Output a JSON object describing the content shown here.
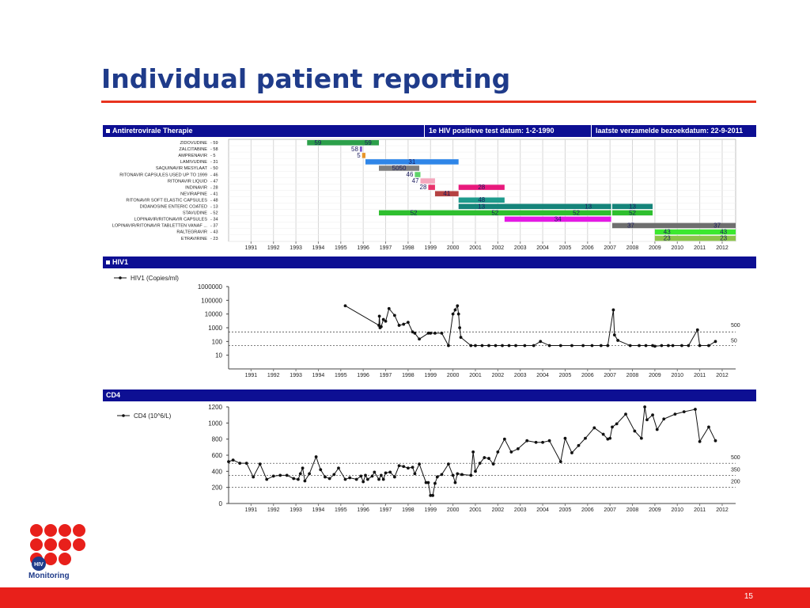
{
  "slide": {
    "title": "Individual patient reporting",
    "page_number": "15",
    "logo_text": "Monitoring",
    "logo_badge": "HIV"
  },
  "sections": {
    "therapy_header": "Antiretrovirale Therapie",
    "test_date": "1e HIV positieve test datum: 1-2-1990",
    "visit_date": "laatste verzamelde bezoekdatum: 22-9-2011",
    "hiv_header": "HIV1",
    "cd4_header": "CD4"
  },
  "colors": {
    "header_bg": "#0d0f93",
    "title": "#1f3b8a",
    "accent_red": "#e8201b"
  },
  "chart_data": [
    {
      "type": "bar",
      "subtype": "gantt",
      "x_ticks": [
        "1991",
        "1992",
        "1993",
        "1994",
        "1995",
        "1996",
        "1997",
        "1998",
        "1999",
        "2000",
        "2001",
        "2002",
        "2003",
        "2004",
        "2005",
        "2006",
        "2007",
        "2008",
        "2009",
        "2010",
        "2011",
        "2012"
      ],
      "xlim": [
        1990,
        2012.6
      ],
      "drugs": [
        {
          "label": "ZIDOVUDINE",
          "code": "- 59"
        },
        {
          "label": "ZALCITABINE",
          "code": "- 58"
        },
        {
          "label": "AMPRENAVIR",
          "code": "- 5"
        },
        {
          "label": "LAMIVUDINE",
          "code": "- 31"
        },
        {
          "label": "SAQUINAVIR MESYLAAT",
          "code": "- 50"
        },
        {
          "label": "RITONAVIR CAPSULES USED UP TO 1999",
          "code": "- 46"
        },
        {
          "label": "RITONAVIR LIQUID",
          "code": "- 47"
        },
        {
          "label": "INDINAVIR",
          "code": "- 28"
        },
        {
          "label": "NEVIRAPINE",
          "code": "- 41"
        },
        {
          "label": "RITONAVIR SOFT ELASTIC CAPSULES",
          "code": "- 48"
        },
        {
          "label": "DIDANOSINE ENTERIC COATED",
          "code": "- 13"
        },
        {
          "label": "STAVUDINE",
          "code": "- 52"
        },
        {
          "label": "LOPINAVIR/RITONAVIR CAPSULES",
          "code": "- 34"
        },
        {
          "label": "LOPINAVIR/RITONAVIR TABLETTEN VANAF ...",
          "code": "- 37"
        },
        {
          "label": "RALTEGRAVIR",
          "code": "- 43"
        },
        {
          "label": "ETRAVIRINE",
          "code": "- 23"
        }
      ],
      "bars": [
        {
          "row": 0,
          "start": 1993.5,
          "end": 1996.7,
          "color": "#2ca04a",
          "labels": [
            "59",
            "59"
          ]
        },
        {
          "row": 1,
          "start": 1995.85,
          "end": 1995.95,
          "color": "#7b5ccf",
          "labels": [
            "58"
          ]
        },
        {
          "row": 2,
          "start": 1995.95,
          "end": 1996.1,
          "color": "#e8952a",
          "labels": [
            "5"
          ]
        },
        {
          "row": 3,
          "start": 1996.1,
          "end": 2000.25,
          "color": "#2f86e8",
          "labels": [
            "31"
          ]
        },
        {
          "row": 4,
          "start": 1996.7,
          "end": 1998.5,
          "color": "#7f7f7f",
          "labels": [
            "5050"
          ]
        },
        {
          "row": 5,
          "start": 1998.3,
          "end": 1998.55,
          "color": "#5fd36a",
          "labels": [
            "46"
          ]
        },
        {
          "row": 6,
          "start": 1998.55,
          "end": 1999.2,
          "color": "#f5a6bd",
          "labels": [
            "47"
          ]
        },
        {
          "row": 7,
          "start": 1998.9,
          "end": 1999.2,
          "color": "#e8326b",
          "labels": [
            "28"
          ]
        },
        {
          "row": 7,
          "start": 2000.25,
          "end": 2002.3,
          "color": "#e8197c",
          "labels": [
            "28"
          ]
        },
        {
          "row": 8,
          "start": 1999.2,
          "end": 2000.25,
          "color": "#b54242",
          "labels": [
            "41"
          ]
        },
        {
          "row": 9,
          "start": 2000.25,
          "end": 2002.3,
          "color": "#1e9b8c",
          "labels": [
            "48"
          ]
        },
        {
          "row": 10,
          "start": 2000.25,
          "end": 2007.05,
          "color": "#15847a",
          "labels": [
            "13",
            "13"
          ]
        },
        {
          "row": 10,
          "start": 2007.1,
          "end": 2008.9,
          "color": "#15847a",
          "labels": [
            "13"
          ]
        },
        {
          "row": 11,
          "start": 1996.7,
          "end": 2007.05,
          "color": "#2ebf2e",
          "labels": [
            "52",
            "52",
            "52"
          ]
        },
        {
          "row": 11,
          "start": 2007.1,
          "end": 2008.9,
          "color": "#2ebf2e",
          "labels": [
            "52"
          ]
        },
        {
          "row": 12,
          "start": 2002.3,
          "end": 2007.05,
          "color": "#e51ae5",
          "labels": [
            "34"
          ]
        },
        {
          "row": 13,
          "start": 2007.1,
          "end": 2012.6,
          "color": "#6e6e6e",
          "labels": [
            "37",
            "37"
          ]
        },
        {
          "row": 14,
          "start": 2009,
          "end": 2012.6,
          "color": "#3be82f",
          "labels": [
            "43",
            "43"
          ]
        },
        {
          "row": 15,
          "start": 2009,
          "end": 2012.6,
          "color": "#8bc34a",
          "labels": [
            "23",
            "23"
          ]
        }
      ]
    },
    {
      "type": "line",
      "scale": "log",
      "legend": "HIV1 (Copies/ml)",
      "y_ticks": [
        "10",
        "100",
        "1000",
        "10000",
        "100000",
        "1000000"
      ],
      "ylim": [
        1,
        1000000
      ],
      "xlim": [
        1990,
        2012.6
      ],
      "x_ticks": [
        "1991",
        "1992",
        "1993",
        "1994",
        "1995",
        "1996",
        "1997",
        "1998",
        "1999",
        "2000",
        "2001",
        "2002",
        "2003",
        "2004",
        "2005",
        "2006",
        "2007",
        "2008",
        "2009",
        "2010",
        "2011",
        "2012"
      ],
      "reference_lines": [
        {
          "value": 500,
          "label": "500"
        },
        {
          "value": 50,
          "label": "50"
        }
      ],
      "points": [
        [
          1995.2,
          40000
        ],
        [
          1996.7,
          1500
        ],
        [
          1996.72,
          7000
        ],
        [
          1996.75,
          1000
        ],
        [
          1996.8,
          1200
        ],
        [
          1996.9,
          4000
        ],
        [
          1997.0,
          3000
        ],
        [
          1997.15,
          25000
        ],
        [
          1997.4,
          8000
        ],
        [
          1997.6,
          1500
        ],
        [
          1997.8,
          1800
        ],
        [
          1998.0,
          2500
        ],
        [
          1998.2,
          500
        ],
        [
          1998.3,
          400
        ],
        [
          1998.5,
          150
        ],
        [
          1998.9,
          400
        ],
        [
          1999.0,
          400
        ],
        [
          1999.2,
          400
        ],
        [
          1999.5,
          400
        ],
        [
          1999.8,
          50
        ],
        [
          2000.0,
          10000
        ],
        [
          2000.1,
          20000
        ],
        [
          2000.2,
          40000
        ],
        [
          2000.25,
          10000
        ],
        [
          2000.3,
          1000
        ],
        [
          2000.35,
          200
        ],
        [
          2000.8,
          50
        ],
        [
          2001.0,
          50
        ],
        [
          2001.3,
          50
        ],
        [
          2001.6,
          50
        ],
        [
          2001.9,
          50
        ],
        [
          2002.2,
          50
        ],
        [
          2002.5,
          50
        ],
        [
          2002.8,
          50
        ],
        [
          2003.2,
          50
        ],
        [
          2003.6,
          50
        ],
        [
          2003.9,
          100
        ],
        [
          2004.3,
          50
        ],
        [
          2004.8,
          50
        ],
        [
          2005.3,
          50
        ],
        [
          2005.8,
          50
        ],
        [
          2006.2,
          50
        ],
        [
          2006.6,
          50
        ],
        [
          2006.9,
          50
        ],
        [
          2007.15,
          20000
        ],
        [
          2007.2,
          300
        ],
        [
          2007.35,
          120
        ],
        [
          2007.9,
          50
        ],
        [
          2008.3,
          50
        ],
        [
          2008.6,
          50
        ],
        [
          2008.9,
          50
        ],
        [
          2009.0,
          45
        ],
        [
          2009.3,
          50
        ],
        [
          2009.6,
          50
        ],
        [
          2009.8,
          50
        ],
        [
          2010.2,
          50
        ],
        [
          2010.5,
          50
        ],
        [
          2010.9,
          700
        ],
        [
          2011.0,
          50
        ],
        [
          2011.4,
          50
        ],
        [
          2011.7,
          100
        ]
      ]
    },
    {
      "type": "line",
      "legend": "CD4 (10^6/L)",
      "y_ticks": [
        "0",
        "200",
        "400",
        "600",
        "800",
        "1000",
        "1200"
      ],
      "ylim": [
        0,
        1200
      ],
      "xlim": [
        1990,
        2012.6
      ],
      "x_ticks": [
        "1991",
        "1992",
        "1993",
        "1994",
        "1995",
        "1996",
        "1997",
        "1998",
        "1999",
        "2000",
        "2001",
        "2002",
        "2003",
        "2004",
        "2005",
        "2006",
        "2007",
        "2008",
        "2009",
        "2010",
        "2011",
        "2012"
      ],
      "reference_lines": [
        {
          "value": 500,
          "label": "500"
        },
        {
          "value": 350,
          "label": "350"
        },
        {
          "value": 200,
          "label": "200"
        }
      ],
      "points": [
        [
          1990.0,
          520
        ],
        [
          1990.2,
          540
        ],
        [
          1990.5,
          500
        ],
        [
          1990.8,
          500
        ],
        [
          1991.1,
          330
        ],
        [
          1991.4,
          490
        ],
        [
          1991.7,
          300
        ],
        [
          1992.0,
          340
        ],
        [
          1992.3,
          350
        ],
        [
          1992.6,
          350
        ],
        [
          1992.9,
          310
        ],
        [
          1993.1,
          300
        ],
        [
          1993.2,
          370
        ],
        [
          1993.3,
          440
        ],
        [
          1993.4,
          280
        ],
        [
          1993.6,
          370
        ],
        [
          1993.9,
          580
        ],
        [
          1994.1,
          420
        ],
        [
          1994.3,
          330
        ],
        [
          1994.5,
          310
        ],
        [
          1994.7,
          360
        ],
        [
          1994.9,
          440
        ],
        [
          1995.2,
          300
        ],
        [
          1995.4,
          320
        ],
        [
          1995.7,
          300
        ],
        [
          1995.9,
          340
        ],
        [
          1996.0,
          270
        ],
        [
          1996.1,
          350
        ],
        [
          1996.2,
          300
        ],
        [
          1996.4,
          340
        ],
        [
          1996.5,
          390
        ],
        [
          1996.7,
          300
        ],
        [
          1996.8,
          350
        ],
        [
          1996.9,
          300
        ],
        [
          1997.0,
          380
        ],
        [
          1997.2,
          390
        ],
        [
          1997.4,
          330
        ],
        [
          1997.6,
          470
        ],
        [
          1997.8,
          460
        ],
        [
          1998.0,
          440
        ],
        [
          1998.2,
          450
        ],
        [
          1998.3,
          370
        ],
        [
          1998.5,
          490
        ],
        [
          1998.8,
          260
        ],
        [
          1998.9,
          260
        ],
        [
          1999.0,
          100
        ],
        [
          1999.1,
          100
        ],
        [
          1999.2,
          250
        ],
        [
          1999.3,
          330
        ],
        [
          1999.5,
          360
        ],
        [
          1999.8,
          490
        ],
        [
          2000.0,
          350
        ],
        [
          2000.1,
          260
        ],
        [
          2000.2,
          370
        ],
        [
          2000.4,
          360
        ],
        [
          2000.8,
          350
        ],
        [
          2000.9,
          640
        ],
        [
          2001.0,
          400
        ],
        [
          2001.2,
          500
        ],
        [
          2001.4,
          570
        ],
        [
          2001.6,
          560
        ],
        [
          2001.8,
          490
        ],
        [
          2002.0,
          640
        ],
        [
          2002.3,
          800
        ],
        [
          2002.6,
          640
        ],
        [
          2002.9,
          680
        ],
        [
          2003.3,
          780
        ],
        [
          2003.7,
          760
        ],
        [
          2004.0,
          760
        ],
        [
          2004.3,
          780
        ],
        [
          2004.8,
          520
        ],
        [
          2005.0,
          810
        ],
        [
          2005.3,
          630
        ],
        [
          2005.6,
          720
        ],
        [
          2005.9,
          810
        ],
        [
          2006.3,
          940
        ],
        [
          2006.7,
          860
        ],
        [
          2006.9,
          800
        ],
        [
          2007.0,
          810
        ],
        [
          2007.1,
          950
        ],
        [
          2007.3,
          990
        ],
        [
          2007.7,
          1110
        ],
        [
          2008.1,
          900
        ],
        [
          2008.4,
          810
        ],
        [
          2008.55,
          1200
        ],
        [
          2008.65,
          1040
        ],
        [
          2008.9,
          1100
        ],
        [
          2009.1,
          920
        ],
        [
          2009.4,
          1050
        ],
        [
          2009.9,
          1110
        ],
        [
          2010.3,
          1140
        ],
        [
          2010.8,
          1170
        ],
        [
          2011.0,
          770
        ],
        [
          2011.4,
          950
        ],
        [
          2011.7,
          780
        ]
      ]
    }
  ]
}
